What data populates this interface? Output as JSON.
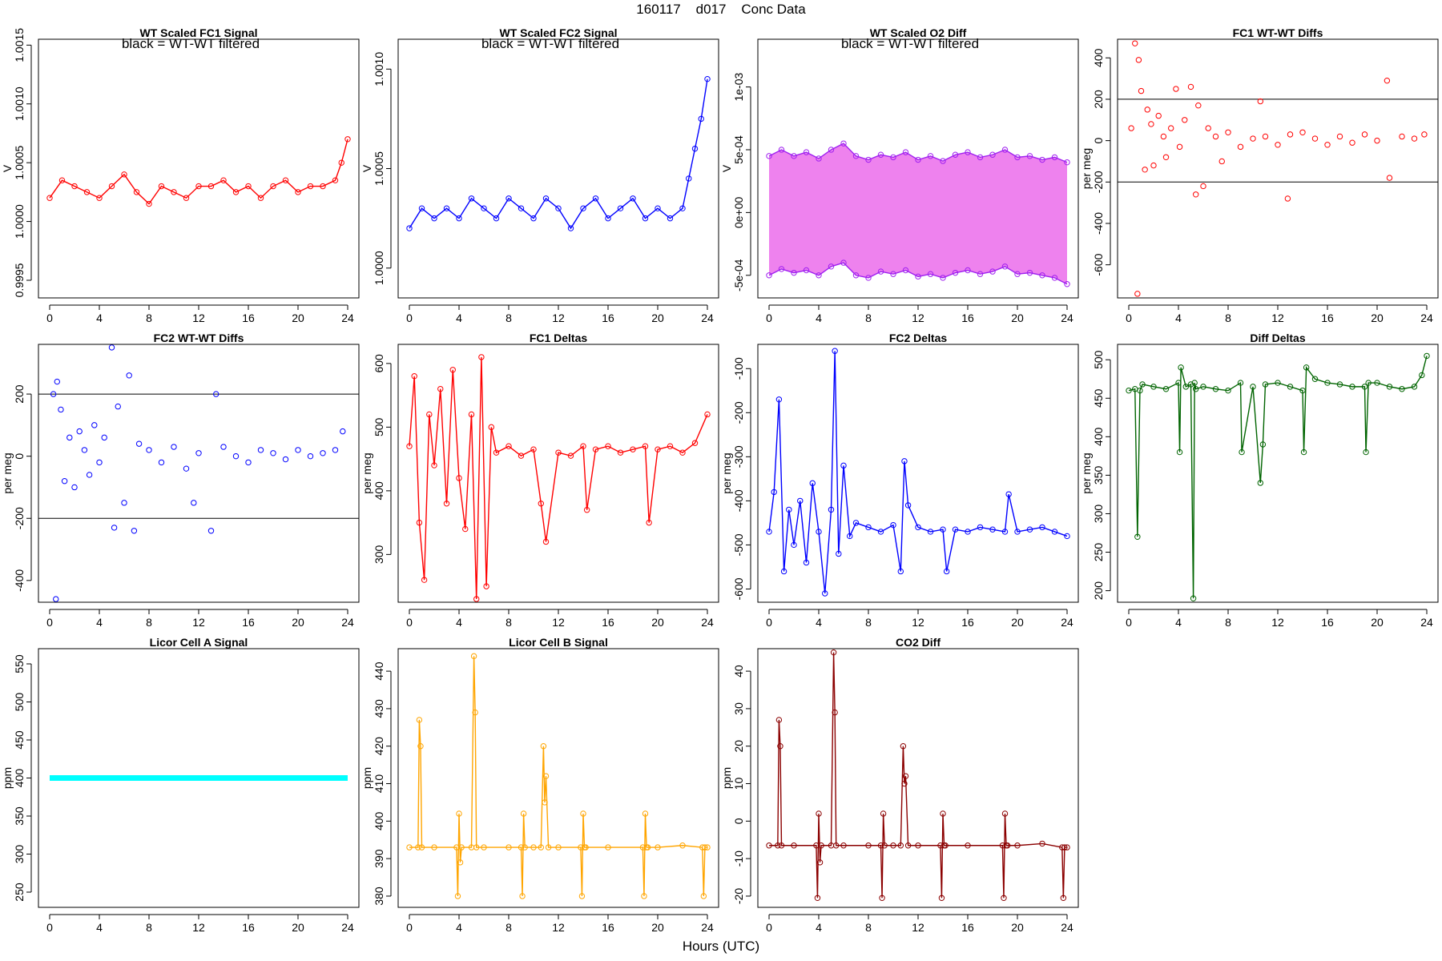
{
  "page": {
    "title": "160117    d017    Conc Data",
    "xlabel": "Hours (UTC)"
  },
  "chart_data": [
    {
      "type": "line",
      "title": "WT Scaled FC1 Signal",
      "subtitle": "black = WT-WT filtered",
      "ylabel": "V",
      "xlim": [
        0,
        24
      ],
      "ylim": [
        0.99935,
        1.00155
      ],
      "xticks": [
        0,
        4,
        8,
        12,
        16,
        20,
        24
      ],
      "yticks": [
        0.9995,
        1.0,
        1.0005,
        1.001,
        1.0015
      ],
      "ytick_labels": [
        "0.9995",
        "1.0000",
        "1.0005",
        "1.0010",
        "1.0015"
      ],
      "color": "#ff0000",
      "series": [
        {
          "x": [
            0,
            1,
            2,
            3,
            4,
            5,
            6,
            7,
            8,
            9,
            10,
            11,
            12,
            13,
            14,
            15,
            16,
            17,
            18,
            19,
            20,
            21,
            22,
            23,
            23.5,
            24
          ],
          "y": [
            1.0002,
            1.00035,
            1.0003,
            1.00025,
            1.0002,
            1.0003,
            1.0004,
            1.00025,
            1.00015,
            1.0003,
            1.00025,
            1.0002,
            1.0003,
            1.0003,
            1.00035,
            1.00025,
            1.0003,
            1.0002,
            1.0003,
            1.00035,
            1.00025,
            1.0003,
            1.0003,
            1.00035,
            1.0005,
            1.0007
          ]
        }
      ]
    },
    {
      "type": "line",
      "title": "WT Scaled FC2 Signal",
      "subtitle": "black = WT-WT filtered",
      "ylabel": "V",
      "xlim": [
        0,
        24
      ],
      "ylim": [
        0.99985,
        1.00115
      ],
      "xticks": [
        0,
        4,
        8,
        12,
        16,
        20,
        24
      ],
      "yticks": [
        1.0,
        1.0005,
        1.001
      ],
      "ytick_labels": [
        "1.0000",
        "1.0005",
        "1.0010"
      ],
      "color": "#0000ff",
      "series": [
        {
          "x": [
            0,
            1,
            2,
            3,
            4,
            5,
            6,
            7,
            8,
            9,
            10,
            11,
            12,
            13,
            14,
            15,
            16,
            17,
            18,
            19,
            20,
            21,
            22,
            22.5,
            23,
            23.5,
            24
          ],
          "y": [
            1.0002,
            1.0003,
            1.00025,
            1.0003,
            1.00025,
            1.00035,
            1.0003,
            1.00025,
            1.00035,
            1.0003,
            1.00025,
            1.00035,
            1.0003,
            1.0002,
            1.0003,
            1.00035,
            1.00025,
            1.0003,
            1.00035,
            1.00025,
            1.0003,
            1.00025,
            1.0003,
            1.00045,
            1.0006,
            1.00075,
            1.00095
          ]
        }
      ]
    },
    {
      "type": "line",
      "title": "WT Scaled O2 Diff",
      "subtitle": "black = WT-WT filtered",
      "ylabel": "V",
      "xlim": [
        0,
        24
      ],
      "ylim": [
        -0.00068,
        0.00138
      ],
      "xticks": [
        0,
        4,
        8,
        12,
        16,
        20,
        24
      ],
      "yticks": [
        -0.0005,
        0,
        0.0005,
        0.001
      ],
      "ytick_labels": [
        "-5e-04",
        "0e+00",
        "5e-04",
        "1e-03"
      ],
      "color": "#a020f0",
      "fill_color": "#ee82ee",
      "series": [
        {
          "name": "upper",
          "x": [
            0,
            1,
            2,
            3,
            4,
            5,
            6,
            7,
            8,
            9,
            10,
            11,
            12,
            13,
            14,
            15,
            16,
            17,
            18,
            19,
            20,
            21,
            22,
            23,
            24
          ],
          "y": [
            0.00045,
            0.0005,
            0.00045,
            0.00048,
            0.00043,
            0.0005,
            0.00055,
            0.00045,
            0.00042,
            0.00046,
            0.00044,
            0.00048,
            0.00042,
            0.00045,
            0.00041,
            0.00046,
            0.00048,
            0.00044,
            0.00046,
            0.0005,
            0.00044,
            0.00045,
            0.00042,
            0.00044,
            0.0004
          ]
        },
        {
          "name": "lower",
          "x": [
            0,
            1,
            2,
            3,
            4,
            5,
            6,
            7,
            8,
            9,
            10,
            11,
            12,
            13,
            14,
            15,
            16,
            17,
            18,
            19,
            20,
            21,
            22,
            23,
            24
          ],
          "y": [
            -0.0005,
            -0.00045,
            -0.00048,
            -0.00046,
            -0.0005,
            -0.00043,
            -0.0004,
            -0.0005,
            -0.00052,
            -0.00047,
            -0.00049,
            -0.00046,
            -0.00051,
            -0.00049,
            -0.00052,
            -0.00048,
            -0.00046,
            -0.00049,
            -0.00047,
            -0.00043,
            -0.00049,
            -0.00048,
            -0.0005,
            -0.00052,
            -0.00057
          ]
        }
      ]
    },
    {
      "type": "scatter",
      "title": "FC1 WT-WT Diffs",
      "ylabel": "per meg",
      "xlim": [
        0,
        24
      ],
      "ylim": [
        -760,
        490
      ],
      "xticks": [
        0,
        4,
        8,
        12,
        16,
        20,
        24
      ],
      "yticks": [
        -600,
        -400,
        -200,
        0,
        200,
        400
      ],
      "hlines": [
        200,
        -200
      ],
      "color": "#ff0000",
      "x": [
        0.2,
        0.5,
        0.7,
        0.8,
        1.0,
        1.3,
        1.5,
        1.8,
        2.0,
        2.4,
        2.8,
        3.0,
        3.4,
        3.8,
        4.1,
        4.5,
        5.0,
        5.4,
        5.6,
        6.0,
        6.4,
        7.0,
        7.5,
        8.0,
        9.0,
        10.0,
        10.6,
        11.0,
        12.0,
        12.8,
        13.0,
        14.0,
        15.0,
        16.0,
        17.0,
        18.0,
        19.0,
        20.0,
        20.8,
        21.0,
        22.0,
        23.0,
        23.8
      ],
      "y": [
        60,
        470,
        -740,
        390,
        240,
        -140,
        150,
        80,
        -120,
        120,
        20,
        -80,
        60,
        250,
        -30,
        100,
        260,
        -260,
        170,
        -220,
        60,
        20,
        -100,
        40,
        -30,
        10,
        190,
        20,
        -20,
        -280,
        30,
        40,
        10,
        -20,
        20,
        -10,
        30,
        0,
        290,
        -180,
        20,
        10,
        30
      ]
    },
    {
      "type": "scatter",
      "title": "FC2 WT-WT Diffs",
      "ylabel": "per meg",
      "xlim": [
        0,
        24
      ],
      "ylim": [
        -470,
        360
      ],
      "xticks": [
        0,
        4,
        8,
        12,
        16,
        20,
        24
      ],
      "yticks": [
        -400,
        -200,
        0,
        200
      ],
      "hlines": [
        200,
        -200
      ],
      "color": "#0000ff",
      "x": [
        0.3,
        0.5,
        0.6,
        0.9,
        1.2,
        1.6,
        2.0,
        2.4,
        2.8,
        3.2,
        3.6,
        4.0,
        4.4,
        5.0,
        5.2,
        5.5,
        6.0,
        6.4,
        6.8,
        7.2,
        8.0,
        9.0,
        10.0,
        11.0,
        11.6,
        12.0,
        13.0,
        13.4,
        14.0,
        15.0,
        16.0,
        17.0,
        18.0,
        19.0,
        20.0,
        21.0,
        22.0,
        23.0,
        23.6
      ],
      "y": [
        200,
        -460,
        240,
        150,
        -80,
        60,
        -100,
        80,
        20,
        -60,
        100,
        -20,
        60,
        350,
        -230,
        160,
        -150,
        260,
        -240,
        40,
        20,
        -20,
        30,
        -40,
        -150,
        10,
        -240,
        200,
        30,
        0,
        -20,
        20,
        10,
        -10,
        20,
        0,
        10,
        20,
        80
      ]
    },
    {
      "type": "line",
      "title": "FC1 Deltas",
      "ylabel": "per meg",
      "xlim": [
        0,
        24
      ],
      "ylim": [
        225,
        630
      ],
      "xticks": [
        0,
        4,
        8,
        12,
        16,
        20,
        24
      ],
      "yticks": [
        300,
        400,
        500,
        600
      ],
      "color": "#ff0000",
      "series": [
        {
          "x": [
            0,
            0.4,
            0.8,
            1.2,
            1.6,
            2.0,
            2.5,
            3.0,
            3.5,
            4.0,
            4.5,
            5.0,
            5.4,
            5.8,
            6.2,
            6.6,
            7.0,
            8.0,
            9.0,
            10.0,
            10.6,
            11.0,
            12.0,
            13.0,
            14.0,
            14.3,
            15.0,
            16.0,
            17.0,
            18.0,
            19.0,
            19.3,
            20.0,
            21.0,
            22.0,
            23.0,
            24.0
          ],
          "y": [
            470,
            580,
            350,
            260,
            520,
            440,
            560,
            380,
            590,
            420,
            340,
            520,
            230,
            610,
            250,
            500,
            460,
            470,
            455,
            465,
            380,
            320,
            460,
            455,
            470,
            370,
            465,
            470,
            460,
            465,
            470,
            350,
            465,
            470,
            460,
            475,
            520
          ]
        }
      ]
    },
    {
      "type": "line",
      "title": "FC2 Deltas",
      "ylabel": "per meg",
      "xlim": [
        0,
        24
      ],
      "ylim": [
        -630,
        -45
      ],
      "xticks": [
        0,
        4,
        8,
        12,
        16,
        20,
        24
      ],
      "yticks": [
        -600,
        -500,
        -400,
        -300,
        -200,
        -100
      ],
      "color": "#0000ff",
      "series": [
        {
          "x": [
            0,
            0.4,
            0.8,
            1.2,
            1.6,
            2.0,
            2.5,
            3.0,
            3.5,
            4.0,
            4.5,
            5.0,
            5.3,
            5.6,
            6.0,
            6.5,
            7.0,
            8.0,
            9.0,
            10.0,
            10.6,
            10.9,
            11.2,
            12.0,
            13.0,
            14.0,
            14.3,
            15.0,
            16.0,
            17.0,
            18.0,
            19.0,
            19.3,
            20.0,
            21.0,
            22.0,
            23.0,
            24.0
          ],
          "y": [
            -470,
            -380,
            -170,
            -560,
            -420,
            -500,
            -400,
            -540,
            -360,
            -470,
            -610,
            -420,
            -60,
            -520,
            -320,
            -480,
            -450,
            -460,
            -470,
            -455,
            -560,
            -310,
            -410,
            -460,
            -470,
            -465,
            -560,
            -465,
            -470,
            -460,
            -465,
            -470,
            -385,
            -470,
            -465,
            -460,
            -470,
            -480
          ]
        }
      ]
    },
    {
      "type": "line",
      "title": "Diff Deltas",
      "ylabel": "per meg",
      "xlim": [
        0,
        24
      ],
      "ylim": [
        185,
        520
      ],
      "xticks": [
        0,
        4,
        8,
        12,
        16,
        20,
        24
      ],
      "yticks": [
        200,
        250,
        300,
        350,
        400,
        450,
        500
      ],
      "color": "#006400",
      "series": [
        {
          "x": [
            0,
            0.5,
            0.7,
            0.9,
            1.1,
            2.0,
            3.0,
            4.0,
            4.1,
            4.2,
            4.6,
            5.0,
            5.2,
            5.3,
            5.4,
            6.0,
            7.0,
            8.0,
            9.0,
            9.1,
            10.0,
            10.6,
            10.8,
            11.0,
            12.0,
            13.0,
            14.0,
            14.1,
            14.3,
            15.0,
            16.0,
            17.0,
            18.0,
            19.0,
            19.1,
            19.3,
            20.0,
            21.0,
            22.0,
            23.0,
            23.6,
            24.0
          ],
          "y": [
            460,
            462,
            270,
            460,
            468,
            465,
            462,
            470,
            380,
            490,
            465,
            468,
            190,
            470,
            462,
            465,
            462,
            460,
            470,
            380,
            465,
            340,
            390,
            468,
            470,
            465,
            460,
            380,
            490,
            475,
            470,
            468,
            465,
            465,
            380,
            470,
            470,
            465,
            462,
            465,
            480,
            505
          ]
        }
      ]
    },
    {
      "type": "line",
      "title": "Licor Cell A Signal",
      "ylabel": "ppm",
      "xlim": [
        0,
        24
      ],
      "ylim": [
        230,
        570
      ],
      "xticks": [
        0,
        4,
        8,
        12,
        16,
        20,
        24
      ],
      "yticks": [
        250,
        300,
        350,
        400,
        450,
        500,
        550
      ],
      "color": "#00ffff",
      "series": [
        {
          "x": [
            0,
            24
          ],
          "y": [
            400,
            400
          ]
        }
      ]
    },
    {
      "type": "line",
      "title": "Licor Cell B Signal",
      "ylabel": "ppm",
      "xlim": [
        0,
        24
      ],
      "ylim": [
        377,
        446
      ],
      "xticks": [
        0,
        4,
        8,
        12,
        16,
        20,
        24
      ],
      "yticks": [
        380,
        390,
        400,
        410,
        420,
        430,
        440
      ],
      "color": "#ffa500",
      "series": [
        {
          "x": [
            0,
            0.7,
            0.8,
            0.9,
            1.0,
            2.0,
            3.8,
            3.9,
            4.0,
            4.1,
            4.2,
            5.0,
            5.2,
            5.3,
            5.4,
            6.0,
            8.0,
            9.0,
            9.1,
            9.2,
            9.3,
            10.0,
            10.6,
            10.8,
            10.9,
            11.0,
            11.2,
            12.0,
            13.8,
            13.9,
            14.0,
            14.1,
            14.2,
            16.0,
            18.8,
            18.9,
            19.0,
            19.1,
            19.2,
            20.0,
            22.0,
            23.6,
            23.7,
            23.8,
            24.0
          ],
          "y": [
            393,
            393,
            427,
            420,
            393,
            393,
            393,
            380,
            402,
            389,
            393,
            393,
            444,
            429,
            393,
            393,
            393,
            393,
            380,
            402,
            393,
            393,
            393,
            420,
            405,
            412,
            393,
            393,
            393,
            380,
            402,
            393,
            393,
            393,
            393,
            380,
            402,
            393,
            393,
            393,
            393.5,
            393,
            380,
            393,
            393
          ]
        }
      ]
    },
    {
      "type": "line",
      "title": "CO2 Diff",
      "ylabel": "ppm",
      "xlim": [
        0,
        24
      ],
      "ylim": [
        -23,
        46
      ],
      "xticks": [
        0,
        4,
        8,
        12,
        16,
        20,
        24
      ],
      "yticks": [
        -20,
        -10,
        0,
        10,
        20,
        30,
        40
      ],
      "color": "#8b0000",
      "series": [
        {
          "x": [
            0,
            0.7,
            0.8,
            0.9,
            1.0,
            2.0,
            3.8,
            3.9,
            4.0,
            4.1,
            4.2,
            5.0,
            5.2,
            5.3,
            5.4,
            6.0,
            8.0,
            9.0,
            9.1,
            9.2,
            9.3,
            10.0,
            10.6,
            10.8,
            10.9,
            11.0,
            11.2,
            12.0,
            13.8,
            13.9,
            14.0,
            14.1,
            14.2,
            16.0,
            18.8,
            18.9,
            19.0,
            19.1,
            19.2,
            20.0,
            22.0,
            23.6,
            23.7,
            23.8,
            24.0
          ],
          "y": [
            -6.5,
            -6.5,
            27,
            20,
            -6.5,
            -6.5,
            -6.5,
            -20.5,
            2,
            -11,
            -6.5,
            -6.5,
            45,
            29,
            -6.5,
            -6.5,
            -6.5,
            -6.5,
            -20.5,
            2,
            -6.5,
            -6.5,
            -6.5,
            20,
            10,
            12,
            -6.5,
            -6.5,
            -6.5,
            -20.5,
            2,
            -6.5,
            -6.5,
            -6.5,
            -6.5,
            -20.5,
            2,
            -6.5,
            -6.5,
            -6.5,
            -6,
            -7,
            -20.5,
            -7,
            -7
          ]
        }
      ]
    }
  ]
}
